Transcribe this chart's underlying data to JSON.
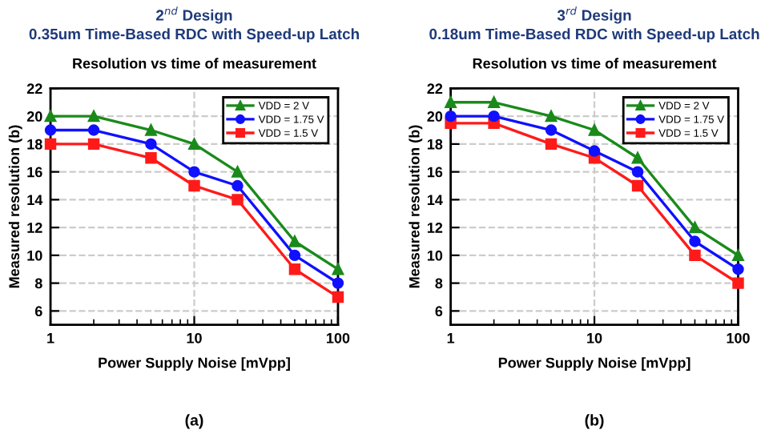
{
  "chart_data": [
    {
      "type": "line",
      "title": "2$^{nd}$ Design\n0.35um Time-Based RDC with Speed-up Latch",
      "subtitle": "Resolution vs time of measurement",
      "xlabel": "Power Supply Noise [mVpp]",
      "ylabel": "Measured resolution (b)",
      "annotations": [
        "(a)"
      ],
      "x": [
        1,
        2,
        5,
        10,
        20,
        50,
        100
      ],
      "log": "x",
      "xlim": [
        1,
        100
      ],
      "xticks": [
        1,
        10,
        100
      ],
      "ylim": [
        5,
        22
      ],
      "yticks": [
        6,
        8,
        10,
        12,
        14,
        16,
        18,
        20,
        22
      ],
      "grid": true,
      "legend": "top right",
      "series": [
        {
          "name": "VDD = 2 V",
          "color": "#1a8a1a",
          "marker": "triangle",
          "values": [
            20,
            20,
            19,
            18,
            16,
            11,
            9
          ]
        },
        {
          "name": "VDD = 1.75 V",
          "color": "#1010ff",
          "marker": "circle",
          "values": [
            19,
            19,
            18,
            16,
            15,
            10,
            8
          ]
        },
        {
          "name": "VDD = 1.5 V",
          "color": "#ff1a1a",
          "marker": "square",
          "values": [
            18,
            18,
            17,
            15,
            14,
            9,
            7
          ]
        }
      ]
    },
    {
      "type": "line",
      "title": "3$^{rd}$ Design\n0.18um Time-Based RDC with Speed-up Latch",
      "subtitle": "Resolution vs time of measurement",
      "xlabel": "Power Supply Noise [mVpp]",
      "ylabel": "Measured resolution (b)",
      "annotations": [
        "(b)"
      ],
      "x": [
        1,
        2,
        5,
        10,
        20,
        50,
        100
      ],
      "log": "x",
      "xlim": [
        1,
        100
      ],
      "xticks": [
        1,
        10,
        100
      ],
      "ylim": [
        5,
        22
      ],
      "yticks": [
        6,
        8,
        10,
        12,
        14,
        16,
        18,
        20,
        22
      ],
      "grid": true,
      "legend": "top right",
      "series": [
        {
          "name": "VDD = 2 V",
          "color": "#1a8a1a",
          "marker": "triangle",
          "values": [
            21,
            21,
            20,
            19,
            17,
            12,
            10
          ]
        },
        {
          "name": "VDD = 1.75 V",
          "color": "#1010ff",
          "marker": "circle",
          "values": [
            20,
            20,
            19,
            17.5,
            16,
            11,
            9
          ]
        },
        {
          "name": "VDD = 1.5 V",
          "color": "#ff1a1a",
          "marker": "square",
          "values": [
            19.5,
            19.5,
            18,
            17,
            15,
            10,
            8
          ]
        }
      ]
    }
  ]
}
